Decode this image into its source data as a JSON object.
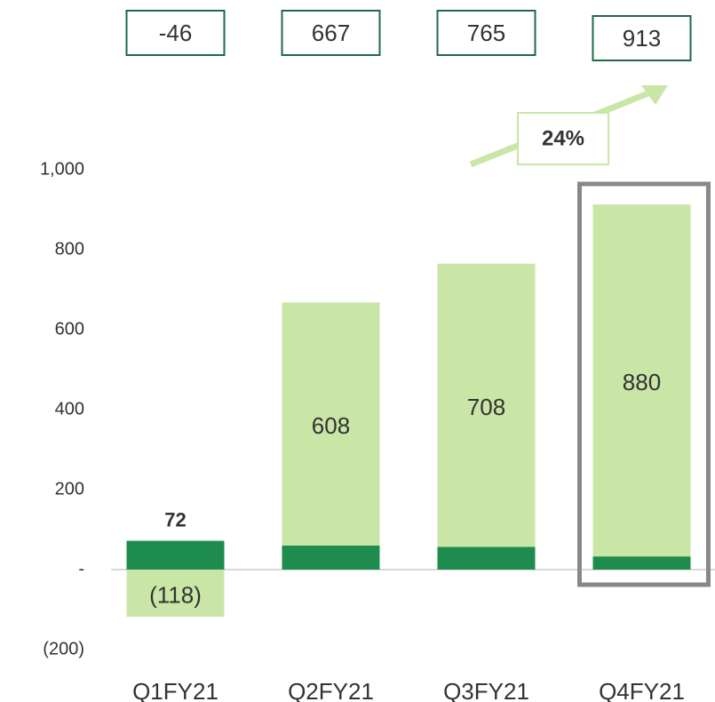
{
  "chart_data": {
    "type": "stacked_bar",
    "categories": [
      "Q1FY21",
      "Q2FY21",
      "Q3FY21",
      "Q4FY21"
    ],
    "series": [
      {
        "color": "#1e8c4e",
        "values": [
          72,
          60,
          57,
          33
        ]
      },
      {
        "color": "#c9e6a6",
        "values": [
          -118,
          608,
          708,
          880
        ],
        "value_labels": [
          "(118)",
          "608",
          "708",
          "880"
        ]
      }
    ],
    "totals": [
      -46,
      667,
      765,
      913
    ],
    "annotation": "24%",
    "ylim": [
      -200,
      1000
    ],
    "yticks": [
      {
        "value": -200,
        "label": "(200)"
      },
      {
        "value": 0,
        "label": "-"
      },
      200,
      400,
      600,
      800,
      {
        "value": 1000,
        "label": "1,000"
      }
    ]
  }
}
